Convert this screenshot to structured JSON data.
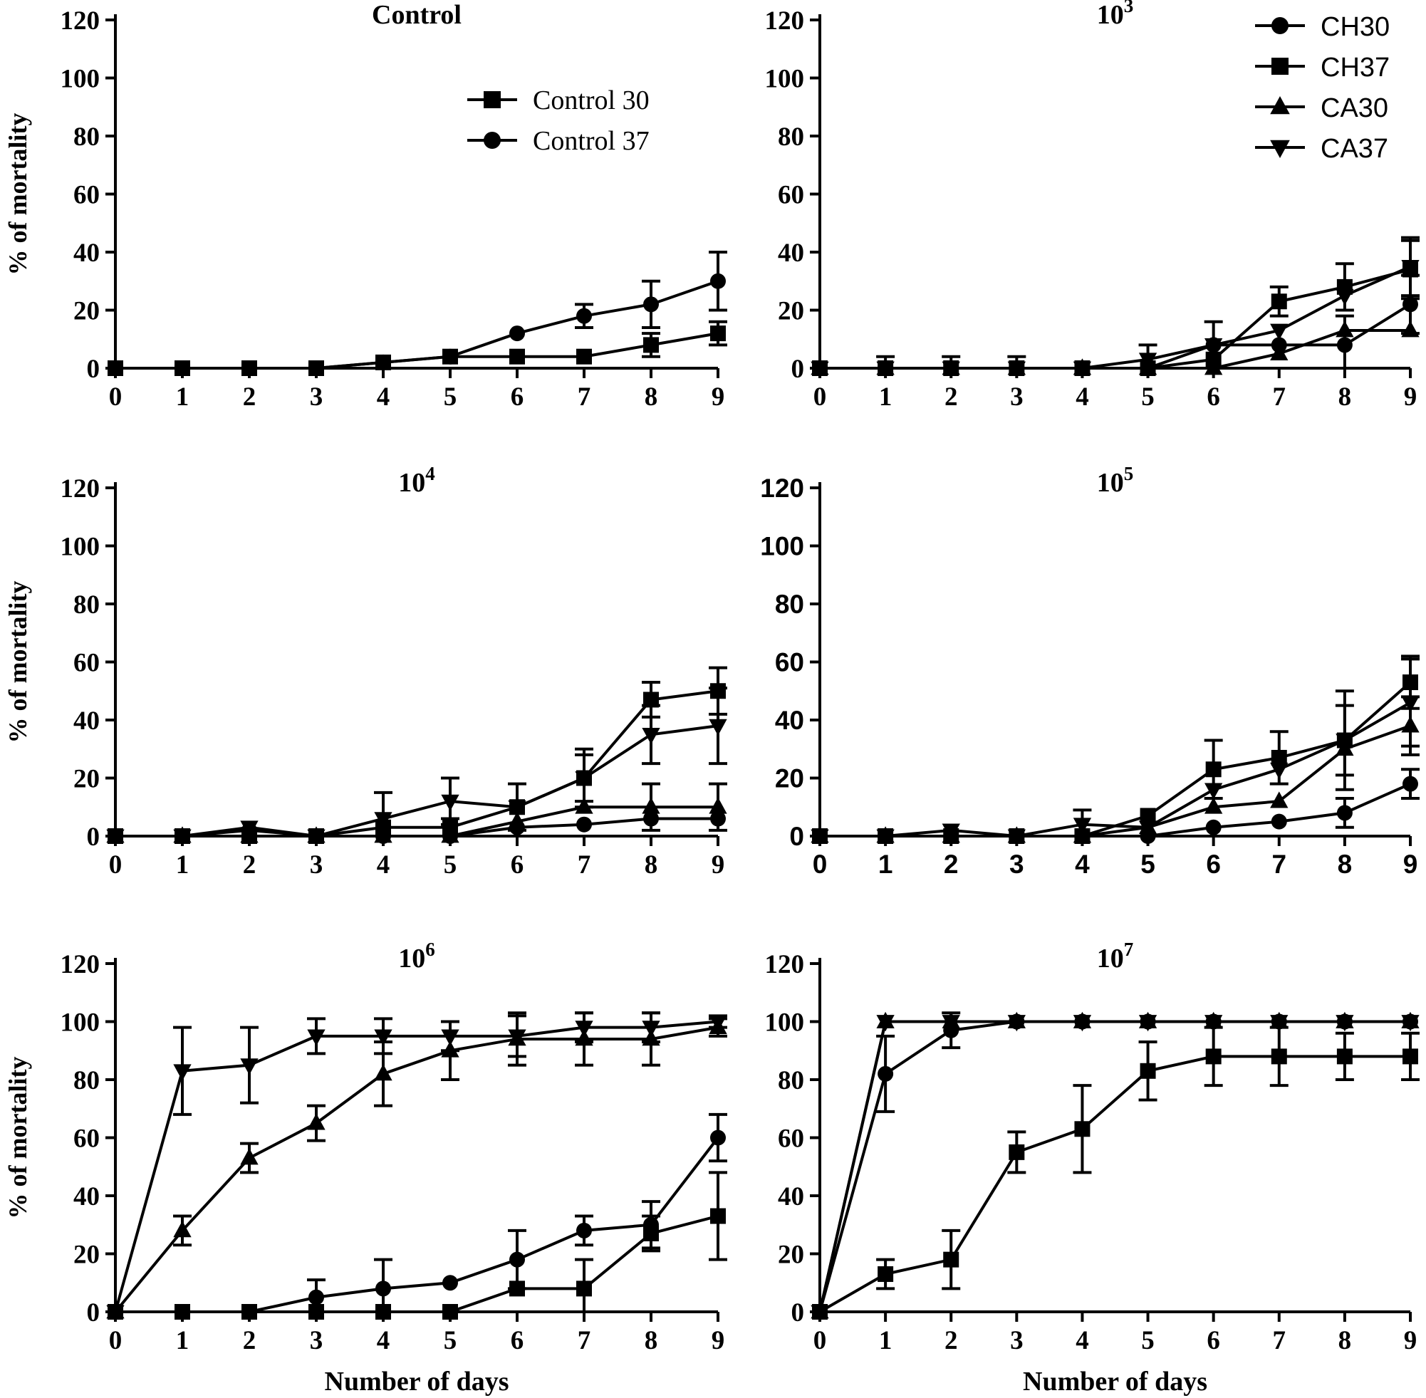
{
  "chart_data": [
    {
      "type": "line",
      "title": "Control",
      "title_sup": "",
      "xlabel": "",
      "ylabel": "% of mortality",
      "x": [
        0,
        1,
        2,
        3,
        4,
        5,
        6,
        7,
        8,
        9
      ],
      "xlim": [
        0,
        9
      ],
      "ylim": [
        0,
        120
      ],
      "yticks": [
        0,
        20,
        40,
        60,
        80,
        100,
        120
      ],
      "tick_font": "serif",
      "legend": "top-center",
      "series": [
        {
          "name": "Control 30",
          "marker": "square",
          "values": [
            0,
            0,
            0,
            0,
            2,
            4,
            4,
            4,
            8,
            12
          ],
          "errors": [
            0,
            0,
            0,
            0,
            0,
            0,
            0,
            0,
            4,
            4
          ]
        },
        {
          "name": "Control 37",
          "marker": "circle",
          "values": [
            0,
            0,
            0,
            0,
            2,
            4,
            12,
            18,
            22,
            30
          ],
          "errors": [
            0,
            0,
            0,
            0,
            0,
            0,
            0,
            4,
            8,
            10
          ]
        }
      ]
    },
    {
      "type": "line",
      "title": "10",
      "title_sup": "3",
      "xlabel": "",
      "ylabel": "",
      "x": [
        0,
        1,
        2,
        3,
        4,
        5,
        6,
        7,
        8,
        9
      ],
      "xlim": [
        0,
        9
      ],
      "ylim": [
        0,
        120
      ],
      "yticks": [
        0,
        20,
        40,
        60,
        80,
        100,
        120
      ],
      "tick_font": "serif",
      "legend": "top-right",
      "series": [
        {
          "name": "CH30",
          "marker": "circle",
          "values": [
            0,
            0,
            0,
            0,
            0,
            0,
            8,
            8,
            8,
            22
          ],
          "errors": [
            0,
            0,
            0,
            0,
            0,
            0,
            0,
            0,
            10,
            10
          ]
        },
        {
          "name": "CH37",
          "marker": "square",
          "values": [
            0,
            0,
            0,
            0,
            0,
            0,
            3,
            23,
            28,
            34
          ],
          "errors": [
            0,
            0,
            0,
            0,
            0,
            0,
            0,
            5,
            8,
            10
          ]
        },
        {
          "name": "CA30",
          "marker": "triangle-up",
          "values": [
            0,
            0,
            0,
            0,
            0,
            0,
            0,
            5,
            13,
            13
          ],
          "errors": [
            0,
            0,
            0,
            0,
            0,
            0,
            0,
            0,
            0,
            0
          ]
        },
        {
          "name": "CA37",
          "marker": "triangle-down",
          "values": [
            0,
            0,
            0,
            0,
            0,
            3,
            8,
            13,
            25,
            35
          ],
          "errors": [
            0,
            4,
            4,
            4,
            0,
            5,
            8,
            0,
            0,
            10
          ]
        }
      ]
    },
    {
      "type": "line",
      "title": "10",
      "title_sup": "4",
      "xlabel": "",
      "ylabel": "% of mortality",
      "x": [
        0,
        1,
        2,
        3,
        4,
        5,
        6,
        7,
        8,
        9
      ],
      "xlim": [
        0,
        9
      ],
      "ylim": [
        0,
        120
      ],
      "yticks": [
        0,
        20,
        40,
        60,
        80,
        100,
        120
      ],
      "tick_font": "serif",
      "legend": "none",
      "series": [
        {
          "name": "CH30",
          "marker": "circle",
          "values": [
            0,
            0,
            2,
            0,
            0,
            0,
            3,
            4,
            6,
            6
          ],
          "errors": [
            0,
            0,
            0,
            0,
            0,
            0,
            0,
            0,
            0,
            0
          ]
        },
        {
          "name": "CH37",
          "marker": "square",
          "values": [
            0,
            0,
            0,
            0,
            3,
            3,
            10,
            20,
            47,
            50
          ],
          "errors": [
            0,
            0,
            0,
            0,
            0,
            3,
            8,
            10,
            6,
            8
          ]
        },
        {
          "name": "CA30",
          "marker": "triangle-up",
          "values": [
            0,
            0,
            0,
            0,
            0,
            0,
            5,
            10,
            10,
            10
          ],
          "errors": [
            0,
            0,
            0,
            0,
            0,
            0,
            0,
            0,
            8,
            8
          ]
        },
        {
          "name": "CA37",
          "marker": "triangle-down",
          "values": [
            0,
            0,
            3,
            0,
            6,
            12,
            10,
            20,
            35,
            38
          ],
          "errors": [
            0,
            0,
            0,
            0,
            9,
            8,
            0,
            8,
            10,
            13
          ]
        }
      ]
    },
    {
      "type": "line",
      "title": "10",
      "title_sup": "5",
      "xlabel": "",
      "ylabel": "",
      "x": [
        0,
        1,
        2,
        3,
        4,
        5,
        6,
        7,
        8,
        9
      ],
      "xlim": [
        0,
        9
      ],
      "ylim": [
        0,
        120
      ],
      "yticks": [
        0,
        20,
        40,
        60,
        80,
        100,
        120
      ],
      "tick_font": "sans",
      "legend": "none",
      "series": [
        {
          "name": "CH30",
          "marker": "circle",
          "values": [
            0,
            0,
            0,
            0,
            0,
            0,
            3,
            5,
            8,
            18
          ],
          "errors": [
            0,
            0,
            0,
            0,
            0,
            0,
            0,
            0,
            5,
            5
          ]
        },
        {
          "name": "CH37",
          "marker": "square",
          "values": [
            0,
            0,
            0,
            0,
            0,
            7,
            23,
            27,
            33,
            53
          ],
          "errors": [
            0,
            0,
            0,
            0,
            0,
            0,
            10,
            9,
            17,
            9
          ]
        },
        {
          "name": "CA30",
          "marker": "triangle-up",
          "values": [
            0,
            0,
            0,
            0,
            0,
            3,
            10,
            12,
            30,
            38
          ],
          "errors": [
            0,
            0,
            0,
            0,
            0,
            0,
            0,
            0,
            0,
            10
          ]
        },
        {
          "name": "CA37",
          "marker": "triangle-down",
          "values": [
            0,
            0,
            2,
            0,
            4,
            3,
            16,
            23,
            33,
            46
          ],
          "errors": [
            0,
            0,
            0,
            0,
            5,
            0,
            0,
            0,
            12,
            15
          ]
        }
      ]
    },
    {
      "type": "line",
      "title": "10",
      "title_sup": "6",
      "xlabel": "Number of days",
      "ylabel": "% of mortality",
      "x": [
        0,
        1,
        2,
        3,
        4,
        5,
        6,
        7,
        8,
        9
      ],
      "xlim": [
        0,
        9
      ],
      "ylim": [
        0,
        120
      ],
      "yticks": [
        0,
        20,
        40,
        60,
        80,
        100,
        120
      ],
      "tick_font": "serif",
      "legend": "none",
      "series": [
        {
          "name": "CH30",
          "marker": "circle",
          "values": [
            0,
            0,
            0,
            5,
            8,
            10,
            18,
            28,
            30,
            60
          ],
          "errors": [
            0,
            0,
            0,
            6,
            10,
            0,
            10,
            5,
            8,
            8
          ]
        },
        {
          "name": "CH37",
          "marker": "square",
          "values": [
            0,
            0,
            0,
            0,
            0,
            0,
            8,
            8,
            27,
            33
          ],
          "errors": [
            0,
            0,
            0,
            0,
            0,
            0,
            0,
            10,
            6,
            15
          ]
        },
        {
          "name": "CA30",
          "marker": "triangle-up",
          "values": [
            0,
            28,
            53,
            65,
            82,
            90,
            94,
            94,
            94,
            98
          ],
          "errors": [
            0,
            5,
            5,
            6,
            11,
            10,
            9,
            9,
            9,
            3
          ]
        },
        {
          "name": "CA37",
          "marker": "triangle-down",
          "values": [
            0,
            83,
            85,
            95,
            95,
            95,
            95,
            98,
            98,
            100
          ],
          "errors": [
            0,
            15,
            13,
            6,
            6,
            5,
            7,
            5,
            5,
            2
          ]
        }
      ]
    },
    {
      "type": "line",
      "title": "10",
      "title_sup": "7",
      "xlabel": "Number of days",
      "ylabel": "",
      "x": [
        0,
        1,
        2,
        3,
        4,
        5,
        6,
        7,
        8,
        9
      ],
      "xlim": [
        0,
        9
      ],
      "ylim": [
        0,
        120
      ],
      "yticks": [
        0,
        20,
        40,
        60,
        80,
        100,
        120
      ],
      "tick_font": "serif",
      "legend": "none",
      "series": [
        {
          "name": "CH30",
          "marker": "circle",
          "values": [
            0,
            82,
            97,
            100,
            100,
            100,
            100,
            100,
            100,
            100
          ],
          "errors": [
            0,
            13,
            6,
            0,
            0,
            0,
            0,
            0,
            0,
            0
          ]
        },
        {
          "name": "CH37",
          "marker": "square",
          "values": [
            0,
            13,
            18,
            55,
            63,
            83,
            88,
            88,
            88,
            88
          ],
          "errors": [
            0,
            5,
            10,
            7,
            15,
            10,
            10,
            10,
            8,
            8
          ]
        },
        {
          "name": "CA30",
          "marker": "triangle-up",
          "values": [
            0,
            100,
            100,
            100,
            100,
            100,
            100,
            100,
            100,
            100
          ],
          "errors": [
            0,
            0,
            0,
            0,
            0,
            0,
            0,
            0,
            0,
            0
          ]
        },
        {
          "name": "CA37",
          "marker": "triangle-down",
          "values": [
            0,
            100,
            100,
            100,
            100,
            100,
            100,
            100,
            100,
            100
          ],
          "errors": [
            0,
            0,
            0,
            0,
            0,
            0,
            0,
            0,
            0,
            0
          ]
        }
      ]
    }
  ]
}
